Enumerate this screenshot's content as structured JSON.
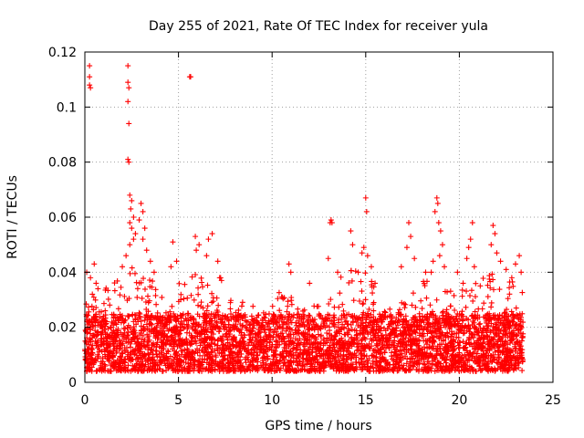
{
  "chart_data": {
    "type": "scatter",
    "title": "Day 255 of 2021, Rate Of TEC Index for receiver yula",
    "xlabel": "GPS time / hours",
    "ylabel": "ROTI / TECUs",
    "xlim": [
      0,
      25
    ],
    "ylim": [
      0,
      0.12
    ],
    "xticks": [
      0,
      5,
      10,
      15,
      20,
      25
    ],
    "xtick_labels": [
      "0",
      "5",
      "10",
      "15",
      "20",
      "25"
    ],
    "yticks": [
      0,
      0.02,
      0.04,
      0.06,
      0.08,
      0.1,
      0.12
    ],
    "ytick_labels": [
      "0",
      "0.02",
      "0.04",
      "0.06",
      "0.08",
      "0.1",
      "0.12"
    ],
    "grid": true,
    "marker": "+",
    "color": "#ff0000",
    "series": [
      {
        "name": "ROTI",
        "points": [
          [
            0.25,
            0.115
          ],
          [
            0.25,
            0.111
          ],
          [
            0.25,
            0.108
          ],
          [
            0.3,
            0.107
          ],
          [
            0.1,
            0.04
          ],
          [
            0.3,
            0.038
          ],
          [
            0.5,
            0.043
          ],
          [
            0.6,
            0.036
          ],
          [
            0.7,
            0.034
          ],
          [
            0.4,
            0.032
          ],
          [
            2.3,
            0.115
          ],
          [
            2.3,
            0.109
          ],
          [
            2.35,
            0.107
          ],
          [
            2.3,
            0.102
          ],
          [
            2.35,
            0.094
          ],
          [
            2.3,
            0.081
          ],
          [
            2.35,
            0.08
          ],
          [
            2.4,
            0.068
          ],
          [
            2.5,
            0.066
          ],
          [
            2.45,
            0.063
          ],
          [
            2.6,
            0.06
          ],
          [
            2.4,
            0.058
          ],
          [
            2.5,
            0.056
          ],
          [
            2.7,
            0.054
          ],
          [
            2.6,
            0.052
          ],
          [
            2.4,
            0.05
          ],
          [
            3.0,
            0.065
          ],
          [
            3.1,
            0.062
          ],
          [
            2.9,
            0.059
          ],
          [
            3.2,
            0.056
          ],
          [
            3.1,
            0.052
          ],
          [
            3.3,
            0.048
          ],
          [
            2.2,
            0.046
          ],
          [
            2.0,
            0.042
          ],
          [
            3.5,
            0.044
          ],
          [
            3.7,
            0.04
          ],
          [
            5.6,
            0.111
          ],
          [
            5.65,
            0.111
          ],
          [
            4.7,
            0.051
          ],
          [
            4.6,
            0.042
          ],
          [
            4.9,
            0.044
          ],
          [
            5.9,
            0.053
          ],
          [
            5.95,
            0.048
          ],
          [
            6.1,
            0.05
          ],
          [
            6.6,
            0.052
          ],
          [
            6.8,
            0.054
          ],
          [
            6.5,
            0.046
          ],
          [
            7.2,
            0.038
          ],
          [
            7.25,
            0.038
          ],
          [
            7.3,
            0.037
          ],
          [
            7.1,
            0.044
          ],
          [
            10.9,
            0.043
          ],
          [
            11.0,
            0.04
          ],
          [
            12.0,
            0.036
          ],
          [
            13.1,
            0.058
          ],
          [
            13.15,
            0.059
          ],
          [
            13.2,
            0.058
          ],
          [
            13.0,
            0.045
          ],
          [
            13.5,
            0.04
          ],
          [
            14.2,
            0.055
          ],
          [
            14.3,
            0.05
          ],
          [
            15.0,
            0.067
          ],
          [
            15.05,
            0.062
          ],
          [
            14.9,
            0.049
          ],
          [
            15.1,
            0.046
          ],
          [
            14.8,
            0.047
          ],
          [
            15.3,
            0.042
          ],
          [
            15.5,
            0.036
          ],
          [
            14.6,
            0.04
          ],
          [
            17.3,
            0.058
          ],
          [
            17.4,
            0.053
          ],
          [
            17.2,
            0.049
          ],
          [
            17.6,
            0.045
          ],
          [
            16.9,
            0.042
          ],
          [
            18.2,
            0.04
          ],
          [
            18.8,
            0.067
          ],
          [
            18.85,
            0.065
          ],
          [
            18.7,
            0.062
          ],
          [
            18.9,
            0.058
          ],
          [
            19.0,
            0.055
          ],
          [
            19.1,
            0.05
          ],
          [
            18.95,
            0.046
          ],
          [
            18.6,
            0.044
          ],
          [
            19.2,
            0.042
          ],
          [
            18.5,
            0.04
          ],
          [
            19.9,
            0.04
          ],
          [
            20.2,
            0.036
          ],
          [
            20.4,
            0.045
          ],
          [
            20.6,
            0.052
          ],
          [
            20.7,
            0.058
          ],
          [
            20.5,
            0.049
          ],
          [
            20.8,
            0.042
          ],
          [
            21.8,
            0.057
          ],
          [
            21.9,
            0.054
          ],
          [
            21.7,
            0.05
          ],
          [
            22.0,
            0.047
          ],
          [
            22.2,
            0.044
          ],
          [
            22.5,
            0.041
          ],
          [
            22.8,
            0.038
          ],
          [
            23.2,
            0.046
          ],
          [
            23.0,
            0.043
          ],
          [
            23.3,
            0.04
          ]
        ]
      }
    ],
    "dense_band": {
      "x_range": [
        0.0,
        23.4
      ],
      "typical_low": 0.004,
      "typical_high": 0.025,
      "envelope_hours": [
        0,
        1,
        2,
        3,
        4,
        5,
        6,
        7,
        8,
        9,
        10,
        11,
        12,
        13,
        14,
        15,
        16,
        17,
        18,
        19,
        20,
        21,
        22,
        23
      ],
      "envelope_roti": [
        0.03,
        0.034,
        0.038,
        0.046,
        0.032,
        0.036,
        0.04,
        0.036,
        0.03,
        0.03,
        0.032,
        0.034,
        0.028,
        0.036,
        0.04,
        0.044,
        0.026,
        0.03,
        0.04,
        0.036,
        0.034,
        0.038,
        0.04,
        0.036
      ]
    }
  }
}
